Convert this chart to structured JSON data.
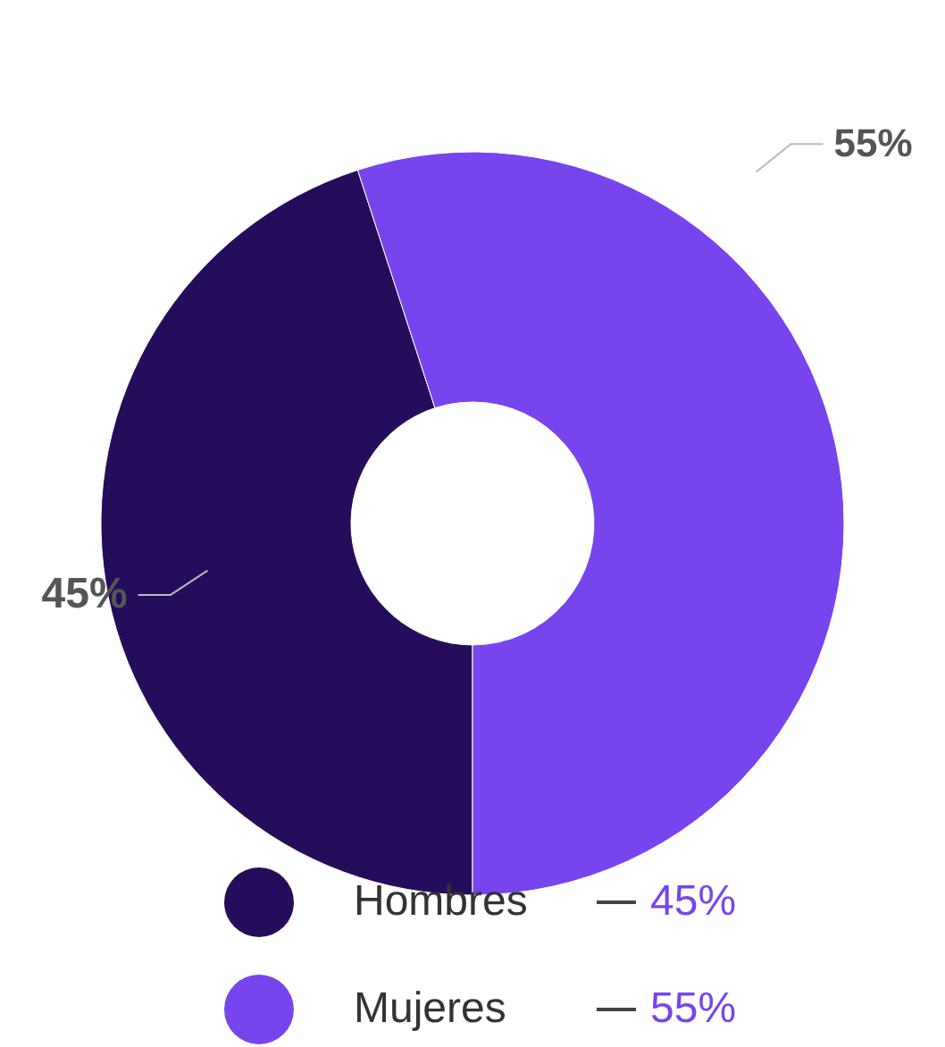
{
  "chart_data": {
    "type": "donut",
    "categories": [
      "Hombres",
      "Mujeres"
    ],
    "values": [
      45,
      55
    ],
    "colors": [
      "#250d5c",
      "#7744ee"
    ],
    "value_labels": [
      "45%",
      "55%"
    ],
    "data_labels": true,
    "legend": "bottom"
  }
}
